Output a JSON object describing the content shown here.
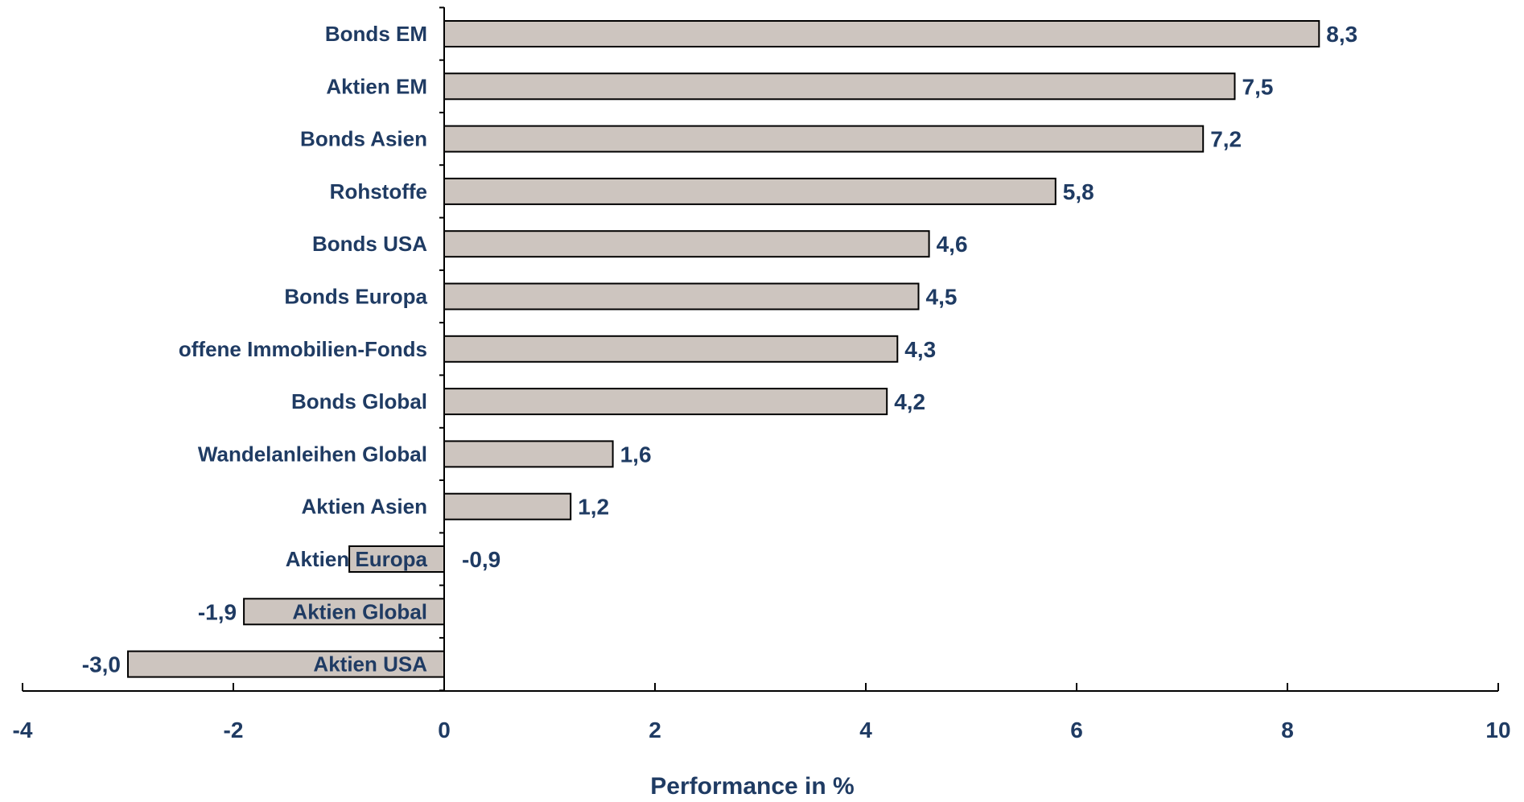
{
  "chart_data": {
    "type": "bar",
    "orientation": "horizontal",
    "categories": [
      "Bonds EM",
      "Aktien EM",
      "Bonds Asien",
      "Rohstoffe",
      "Bonds USA",
      "Bonds Europa",
      "offene Immobilien-Fonds",
      "Bonds Global",
      "Wandelanleihen Global",
      "Aktien Asien",
      "Aktien Europa",
      "Aktien Global",
      "Aktien USA"
    ],
    "values": [
      8.3,
      7.5,
      7.2,
      5.8,
      4.6,
      4.5,
      4.3,
      4.2,
      1.6,
      1.2,
      -0.9,
      -1.9,
      -3.0
    ],
    "value_labels": [
      "8,3",
      "7,5",
      "7,2",
      "5,8",
      "4,6",
      "4,5",
      "4,3",
      "4,2",
      "1,6",
      "1,2",
      "-0,9",
      "-1,9",
      "-3,0"
    ],
    "xlim": [
      -4,
      10
    ],
    "xticks": [
      -4,
      -2,
      0,
      2,
      4,
      6,
      8,
      10
    ],
    "xtick_labels": [
      "-4",
      "-2",
      "0",
      "2",
      "4",
      "6",
      "8",
      "10"
    ],
    "xlabel": "Performance in %",
    "ylabel": "",
    "title": "",
    "grid": false,
    "colors": {
      "bar_fill": "#cdc5bf",
      "bar_stroke": "#000000",
      "text": "#1f3b63"
    }
  }
}
